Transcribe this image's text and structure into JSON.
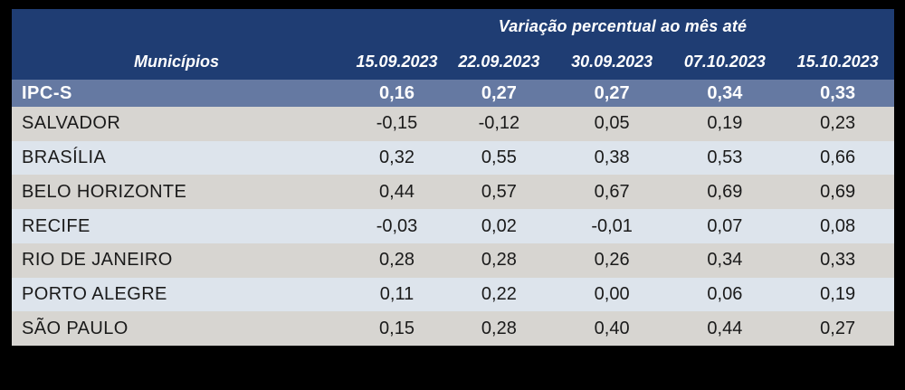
{
  "header": {
    "group_title": "Variação percentual ao mês até",
    "municipalities_label": "Municípios",
    "dates": [
      "15.09.2023",
      "22.09.2023",
      "30.09.2023",
      "07.10.2023",
      "15.10.2023"
    ]
  },
  "summary": {
    "label": "IPC-S",
    "values": [
      "0,16",
      "0,27",
      "0,27",
      "0,34",
      "0,33"
    ]
  },
  "rows": [
    {
      "label": "SALVADOR",
      "values": [
        "-0,15",
        "-0,12",
        "0,05",
        "0,19",
        "0,23"
      ]
    },
    {
      "label": "BRASÍLIA",
      "values": [
        "0,32",
        "0,55",
        "0,38",
        "0,53",
        "0,66"
      ]
    },
    {
      "label": "BELO HORIZONTE",
      "values": [
        "0,44",
        "0,57",
        "0,67",
        "0,69",
        "0,69"
      ]
    },
    {
      "label": "RECIFE",
      "values": [
        "-0,03",
        "0,02",
        "-0,01",
        "0,07",
        "0,08"
      ]
    },
    {
      "label": "RIO DE JANEIRO",
      "values": [
        "0,28",
        "0,28",
        "0,26",
        "0,34",
        "0,33"
      ]
    },
    {
      "label": "PORTO ALEGRE",
      "values": [
        "0,11",
        "0,22",
        "0,00",
        "0,06",
        "0,19"
      ]
    },
    {
      "label": "SÃO PAULO",
      "values": [
        "0,15",
        "0,28",
        "0,40",
        "0,44",
        "0,27"
      ]
    }
  ],
  "colors": {
    "canvas_bg": "#000000",
    "header_bg": "#1f3d73",
    "summary_bg": "#6579a2",
    "row_gray": "#d7d5d1",
    "row_blue": "#dde4ec"
  },
  "chart_data": {
    "type": "table",
    "title": "Variação percentual ao mês até",
    "columns": [
      "Municípios",
      "15.09.2023",
      "22.09.2023",
      "30.09.2023",
      "07.10.2023",
      "15.10.2023"
    ],
    "rows": [
      [
        "IPC-S",
        0.16,
        0.27,
        0.27,
        0.34,
        0.33
      ],
      [
        "SALVADOR",
        -0.15,
        -0.12,
        0.05,
        0.19,
        0.23
      ],
      [
        "BRASÍLIA",
        0.32,
        0.55,
        0.38,
        0.53,
        0.66
      ],
      [
        "BELO HORIZONTE",
        0.44,
        0.57,
        0.67,
        0.69,
        0.69
      ],
      [
        "RECIFE",
        -0.03,
        0.02,
        -0.01,
        0.07,
        0.08
      ],
      [
        "RIO DE JANEIRO",
        0.28,
        0.28,
        0.26,
        0.34,
        0.33
      ],
      [
        "PORTO ALEGRE",
        0.11,
        0.22,
        0.0,
        0.06,
        0.19
      ],
      [
        "SÃO PAULO",
        0.15,
        0.28,
        0.4,
        0.44,
        0.27
      ]
    ]
  }
}
